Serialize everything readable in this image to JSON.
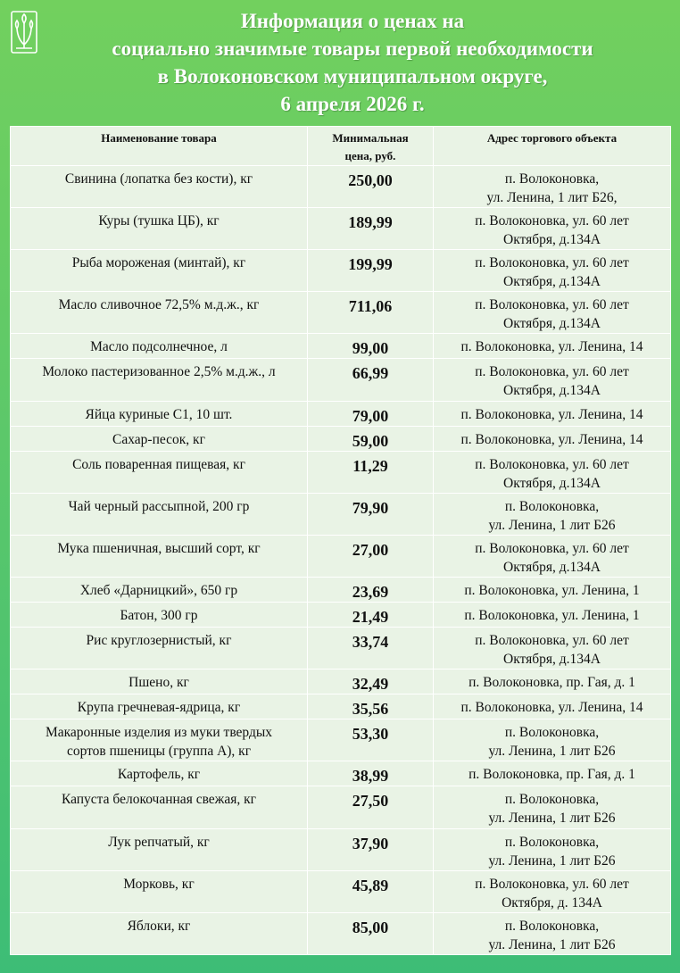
{
  "header": {
    "lines": [
      "Информация о ценах на",
      "социально значимые товары первой необходимости",
      "в Волоконовском муниципальном округе,",
      "6 апреля 2026 г."
    ]
  },
  "icons": {
    "logo": "tulip-emblem-icon"
  },
  "table": {
    "headers": {
      "name": "Наименование товара",
      "price_line1": "Минимальная",
      "price_line2": "цена, руб.",
      "address": "Адрес торгового объекта"
    },
    "rows": [
      {
        "name": [
          "Свинина (лопатка без кости), кг"
        ],
        "price": "250,00",
        "address": [
          "п. Волоконовка,",
          "ул. Ленина, 1 лит Б26,"
        ]
      },
      {
        "name": [
          "Куры (тушка ЦБ), кг"
        ],
        "price": "189,99",
        "address": [
          "п. Волоконовка, ул. 60 лет",
          "Октября, д.134А"
        ]
      },
      {
        "name": [
          "Рыба мороженая (минтай), кг"
        ],
        "price": "199,99",
        "address": [
          "п. Волоконовка, ул. 60 лет",
          "Октября, д.134А"
        ]
      },
      {
        "name": [
          "Масло сливочное 72,5% м.д.ж., кг"
        ],
        "price": "711,06",
        "address": [
          "п. Волоконовка, ул. 60 лет",
          "Октября, д.134А"
        ]
      },
      {
        "name": [
          "Масло подсолнечное, л"
        ],
        "price": "99,00",
        "address": [
          "п. Волоконовка, ул. Ленина, 14"
        ]
      },
      {
        "name": [
          "Молоко пастеризованное 2,5% м.д.ж., л"
        ],
        "price": "66,99",
        "address": [
          "п. Волоконовка, ул. 60 лет",
          "Октября, д.134А"
        ]
      },
      {
        "name": [
          "Яйца куриные С1, 10 шт."
        ],
        "price": "79,00",
        "address": [
          "п. Волоконовка, ул. Ленина, 14"
        ]
      },
      {
        "name": [
          "Сахар-песок, кг"
        ],
        "price": "59,00",
        "address": [
          "п. Волоконовка, ул. Ленина, 14"
        ]
      },
      {
        "name": [
          "Соль поваренная пищевая, кг"
        ],
        "price": "11,29",
        "address": [
          "п. Волоконовка, ул. 60 лет",
          "Октября, д.134А"
        ]
      },
      {
        "name": [
          "Чай черный рассыпной, 200 гр"
        ],
        "price": "79,90",
        "address": [
          "п. Волоконовка,",
          "ул. Ленина, 1 лит Б26"
        ]
      },
      {
        "name": [
          "Мука пшеничная, высший сорт, кг"
        ],
        "price": "27,00",
        "address": [
          "п. Волоконовка, ул. 60 лет",
          "Октября, д.134А"
        ]
      },
      {
        "name": [
          "Хлеб «Дарницкий», 650 гр"
        ],
        "price": "23,69",
        "address": [
          "п. Волоконовка, ул. Ленина, 1"
        ]
      },
      {
        "name": [
          "Батон, 300 гр"
        ],
        "price": "21,49",
        "address": [
          "п. Волоконовка, ул. Ленина, 1"
        ]
      },
      {
        "name": [
          "Рис круглозернистый, кг"
        ],
        "price": "33,74",
        "address": [
          "п. Волоконовка, ул. 60 лет",
          "Октября, д.134А"
        ]
      },
      {
        "name": [
          "Пшено, кг"
        ],
        "price": "32,49",
        "address": [
          "п. Волоконовка, пр. Гая, д. 1"
        ]
      },
      {
        "name": [
          "Крупа гречневая-ядрица, кг"
        ],
        "price": "35,56",
        "address": [
          "п. Волоконовка, ул. Ленина, 14"
        ]
      },
      {
        "name": [
          "Макаронные изделия из муки твердых",
          "сортов пшеницы (группа А), кг"
        ],
        "price": "53,30",
        "address": [
          "п. Волоконовка,",
          "ул. Ленина, 1 лит Б26"
        ]
      },
      {
        "name": [
          "Картофель, кг"
        ],
        "price": "38,99",
        "address": [
          "п. Волоконовка, пр. Гая, д. 1"
        ]
      },
      {
        "name": [
          "Капуста белокочанная свежая, кг"
        ],
        "price": "27,50",
        "address": [
          "п. Волоконовка,",
          "ул. Ленина, 1 лит Б26"
        ]
      },
      {
        "name": [
          "Лук репчатый, кг"
        ],
        "price": "37,90",
        "address": [
          "п. Волоконовка,",
          "ул. Ленина, 1 лит Б26"
        ]
      },
      {
        "name": [
          "Морковь, кг"
        ],
        "price": "45,89",
        "address": [
          "п. Волоконовка, ул. 60 лет",
          "Октября, д. 134А"
        ]
      },
      {
        "name": [
          "Яблоки, кг"
        ],
        "price": "85,00",
        "address": [
          "п. Волоконовка,",
          "ул. Ленина, 1 лит Б26"
        ]
      }
    ]
  }
}
